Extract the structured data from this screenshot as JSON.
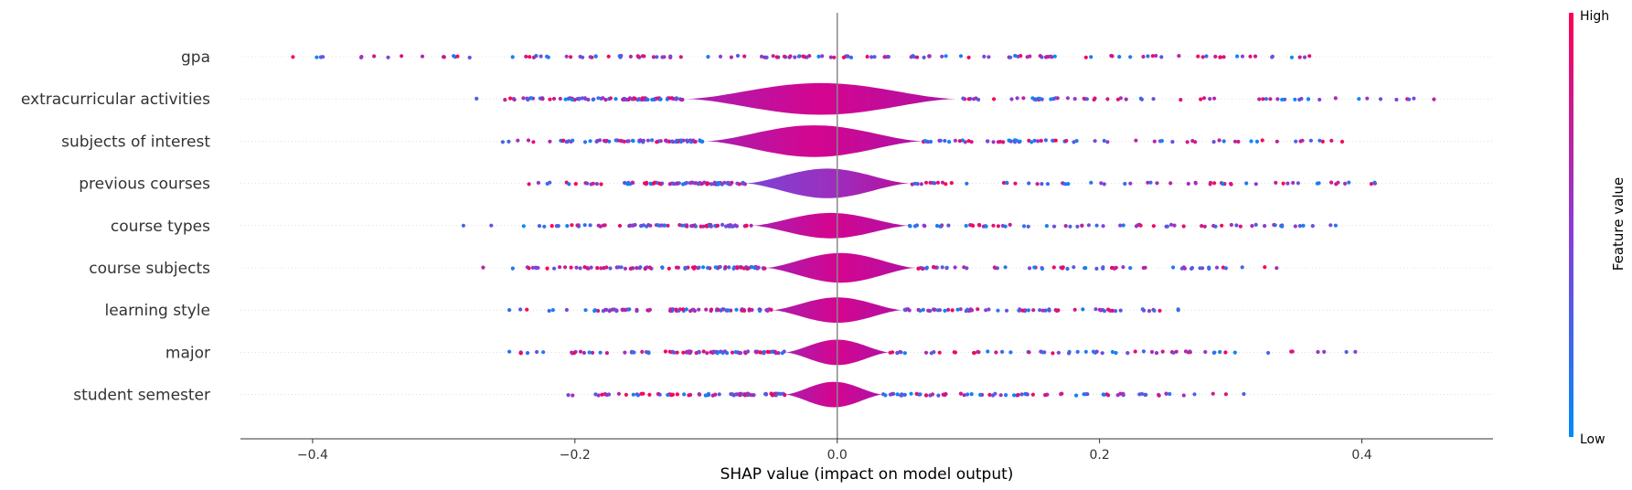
{
  "chart_data": {
    "type": "scatter",
    "subtype": "shap-violin-summary",
    "title": "",
    "xlabel": "SHAP value (impact on model output)",
    "xlim": [
      -0.455,
      0.5
    ],
    "xticks": [
      -0.4,
      -0.2,
      0.0,
      0.2,
      0.4
    ],
    "xtick_labels": [
      "−0.4",
      "−0.2",
      "0.0",
      "0.2",
      "0.4"
    ],
    "zero_line": true,
    "grid": false,
    "colorbar": {
      "title": "Feature value",
      "high_label": "High",
      "low_label": "Low",
      "low_color": "#008bfb",
      "high_color": "#ff0052",
      "placement": "right"
    },
    "features": [
      {
        "name": "gpa",
        "spread": [
          -0.415,
          0.36
        ],
        "body": [
          0,
          0
        ],
        "violin_height": 0.05
      },
      {
        "name": "extracurricular activities",
        "spread": [
          -0.275,
          0.455
        ],
        "body": [
          -0.115,
          0.09
        ],
        "violin_height": 0.75
      },
      {
        "name": "subjects of interest",
        "spread": [
          -0.255,
          0.385
        ],
        "body": [
          -0.1,
          0.065
        ],
        "violin_height": 0.75
      },
      {
        "name": "previous courses",
        "spread": [
          -0.235,
          0.41
        ],
        "body": [
          -0.07,
          0.055
        ],
        "violin_height": 0.7
      },
      {
        "name": "course types",
        "spread": [
          -0.285,
          0.38
        ],
        "body": [
          -0.065,
          0.055
        ],
        "violin_height": 0.6
      },
      {
        "name": "course subjects",
        "spread": [
          -0.27,
          0.335
        ],
        "body": [
          -0.055,
          0.06
        ],
        "violin_height": 0.7
      },
      {
        "name": "learning style",
        "spread": [
          -0.25,
          0.26
        ],
        "body": [
          -0.05,
          0.05
        ],
        "violin_height": 0.6
      },
      {
        "name": "major",
        "spread": [
          -0.25,
          0.395
        ],
        "body": [
          -0.04,
          0.04
        ],
        "violin_height": 0.6
      },
      {
        "name": "student semester",
        "spread": [
          -0.205,
          0.31
        ],
        "body": [
          -0.04,
          0.035
        ],
        "violin_height": 0.6
      }
    ]
  }
}
